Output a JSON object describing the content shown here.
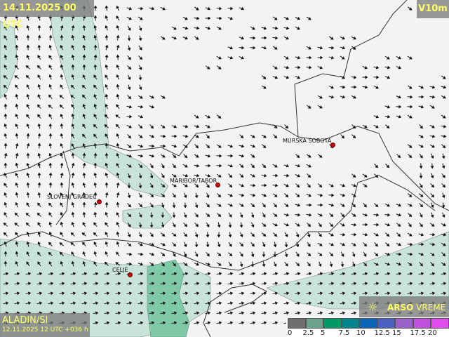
{
  "header": {
    "valid_time": "14.11.2025 00 UTC",
    "parameter": "V10m"
  },
  "footer": {
    "model": "ALADIN/SI",
    "run": "12.11.2025 12 UTC +036 h"
  },
  "brand": {
    "icon": "sun-icon",
    "bold": "ARSO",
    "rest": " VREME"
  },
  "cities": [
    {
      "name": "MURSKA SOBOTA"
    },
    {
      "name": "MARIBOR/TABOR"
    },
    {
      "name": "SLOVENJ GRADEC"
    },
    {
      "name": "CELJE"
    }
  ],
  "legend": {
    "unit_values": [
      "0",
      "2.5",
      "5",
      "7.5",
      "10",
      "12.5",
      "15",
      "17.5",
      "20"
    ],
    "colors": [
      "#6e6e6e",
      "#6aa38c",
      "#009966",
      "#00868a",
      "#0a64b4",
      "#4b62c4",
      "#9a62c8",
      "#c250de",
      "#e04cf2"
    ]
  }
}
